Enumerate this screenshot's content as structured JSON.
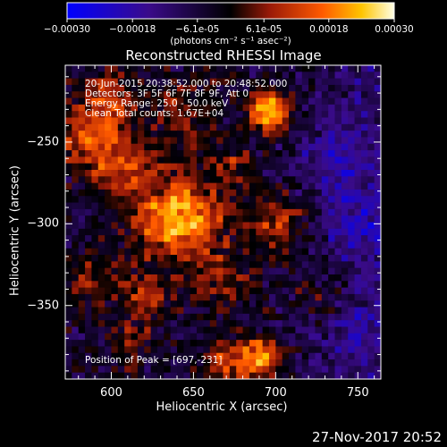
{
  "chart_data": {
    "type": "heatmap",
    "title": "Reconstructed RHESSI Image",
    "xlabel": "Heliocentric X (arcsec)",
    "ylabel": "Heliocentric Y (arcsec)",
    "xlim": [
      572,
      764
    ],
    "ylim": [
      -395,
      -203
    ],
    "x_ticks": [
      600,
      650,
      700,
      750
    ],
    "y_ticks": [
      -250,
      -300,
      -350
    ],
    "colorbar": {
      "ticks": [
        "-0.00030",
        "-0.00018",
        "-6.1e-05",
        "6.1e-05",
        "0.00018",
        "0.00030"
      ],
      "range": [
        -0.0003,
        0.0003
      ],
      "unit_label": "(photons cm⁻² s⁻¹ asec⁻²)"
    },
    "annotations": {
      "time_range": "20-Jun-2015 20:38:52.000 to 20:48:52.000",
      "detectors": "Detectors: 3F 5F 6F 7F 8F 9F, Att 0",
      "energy": "Energy Range: 25.0 - 50.0 keV",
      "method": "Clean     Total counts: 1.67E+04",
      "peak": "Position of Peak = [697,-231]"
    },
    "peak": {
      "x": 697,
      "y": -231
    },
    "hotspots": [
      {
        "x": 697,
        "y": -231,
        "w": 1.0,
        "s": 9
      },
      {
        "x": 650,
        "y": -295,
        "w": 0.7,
        "s": 16
      },
      {
        "x": 630,
        "y": -300,
        "w": 0.55,
        "s": 14
      },
      {
        "x": 608,
        "y": -265,
        "w": 0.5,
        "s": 16
      },
      {
        "x": 585,
        "y": -245,
        "w": 0.55,
        "s": 14
      },
      {
        "x": 600,
        "y": -222,
        "w": 0.45,
        "s": 12
      },
      {
        "x": 645,
        "y": -232,
        "w": 0.35,
        "s": 14
      },
      {
        "x": 702,
        "y": -300,
        "w": 0.5,
        "s": 12
      },
      {
        "x": 690,
        "y": -383,
        "w": 0.75,
        "s": 10
      },
      {
        "x": 668,
        "y": -385,
        "w": 0.5,
        "s": 10
      },
      {
        "x": 620,
        "y": -345,
        "w": 0.45,
        "s": 12
      },
      {
        "x": 585,
        "y": -335,
        "w": 0.35,
        "s": 12
      },
      {
        "x": 730,
        "y": -345,
        "w": 0.3,
        "s": 12
      },
      {
        "x": 665,
        "y": -335,
        "w": 0.35,
        "s": 14
      },
      {
        "x": 610,
        "y": -375,
        "w": 0.3,
        "s": 10
      },
      {
        "x": 672,
        "y": -262,
        "w": 0.35,
        "s": 10
      },
      {
        "x": 735,
        "y": -260,
        "w": -0.35,
        "s": 14
      },
      {
        "x": 750,
        "y": -300,
        "w": -0.3,
        "s": 16
      },
      {
        "x": 745,
        "y": -365,
        "w": -0.25,
        "s": 14
      }
    ]
  },
  "footer": {
    "date": "27-Nov-2017 20:52"
  }
}
